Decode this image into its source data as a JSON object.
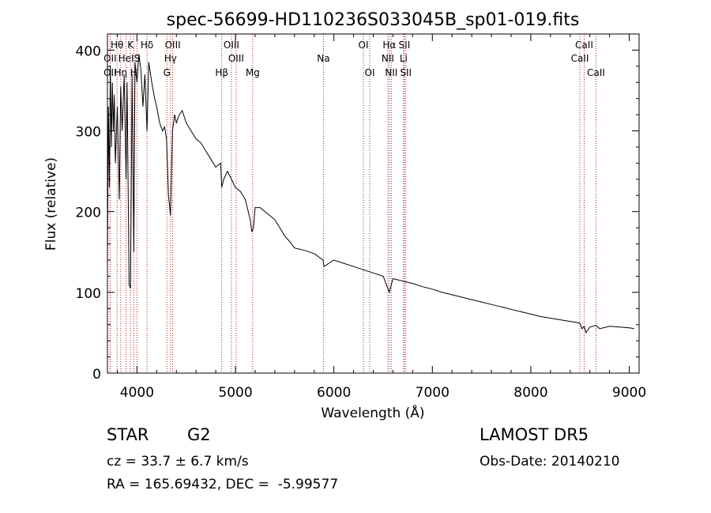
{
  "chart_data": {
    "type": "line",
    "title": "spec-56699-HD110236S033045B_sp01-019.fits",
    "xlabel": "Wavelength (Å)",
    "ylabel": "Flux (relative)",
    "xlim": [
      3700,
      9100
    ],
    "ylim": [
      0,
      420
    ],
    "x_ticks": [
      4000,
      5000,
      6000,
      7000,
      8000,
      9000
    ],
    "y_ticks": [
      0,
      100,
      200,
      300,
      400
    ],
    "grid": false,
    "line_color": "#000000",
    "marker_color": "#b22222",
    "series": [
      {
        "x": [
          3700,
          3710,
          3720,
          3730,
          3740,
          3750,
          3760,
          3770,
          3780,
          3800,
          3820,
          3835,
          3850,
          3870,
          3889,
          3900,
          3920,
          3934,
          3950,
          3968,
          3980,
          4000,
          4020,
          4040,
          4060,
          4080,
          4102,
          4120,
          4150,
          4180,
          4200,
          4230,
          4260,
          4280,
          4300,
          4320,
          4340,
          4360,
          4383,
          4400,
          4430,
          4460,
          4500,
          4550,
          4600,
          4650,
          4700,
          4750,
          4800,
          4850,
          4861,
          4880,
          4920,
          4960,
          5000,
          5050,
          5100,
          5150,
          5167,
          5183,
          5200,
          5250,
          5300,
          5350,
          5400,
          5450,
          5500,
          5550,
          5600,
          5700,
          5800,
          5890,
          5900,
          6000,
          6100,
          6200,
          6300,
          6400,
          6500,
          6563,
          6600,
          6700,
          6800,
          6900,
          7000,
          7100,
          7200,
          7300,
          7400,
          7500,
          7600,
          7700,
          7800,
          7900,
          8000,
          8100,
          8200,
          8300,
          8400,
          8498,
          8520,
          8542,
          8560,
          8600,
          8662,
          8700,
          8800,
          8900,
          9000,
          9050
        ],
        "y": [
          140,
          330,
          230,
          380,
          280,
          360,
          300,
          345,
          260,
          330,
          215,
          355,
          300,
          370,
          240,
          360,
          110,
          105,
          370,
          150,
          385,
          360,
          395,
          375,
          330,
          370,
          300,
          385,
          360,
          340,
          330,
          310,
          300,
          305,
          290,
          220,
          195,
          300,
          320,
          310,
          320,
          325,
          310,
          300,
          290,
          285,
          275,
          265,
          255,
          260,
          230,
          240,
          250,
          240,
          230,
          225,
          215,
          190,
          175,
          180,
          205,
          205,
          200,
          195,
          190,
          180,
          170,
          163,
          155,
          152,
          148,
          140,
          132,
          140,
          136,
          132,
          128,
          124,
          120,
          100,
          117,
          114,
          111,
          107,
          104,
          100,
          97,
          94,
          91,
          88,
          85,
          82,
          79,
          76,
          73,
          70,
          68,
          66,
          64,
          62,
          55,
          58,
          50,
          57,
          59,
          55,
          58,
          57,
          56,
          55
        ]
      }
    ],
    "lines": [
      {
        "label": "Hθ",
        "x": 3798,
        "row": 1
      },
      {
        "label": "OII",
        "x": 3727,
        "row": 2
      },
      {
        "label": "HeI",
        "x": 3889,
        "row": 2
      },
      {
        "label": "OII",
        "x": 3727,
        "row": 3
      },
      {
        "label": "Hη",
        "x": 3835,
        "row": 3
      },
      {
        "label": "K",
        "x": 3934,
        "row": 1
      },
      {
        "label": "H",
        "x": 3968,
        "row": 3
      },
      {
        "label": "S",
        "x": 4000,
        "row": 2
      },
      {
        "label": "Hδ",
        "x": 4102,
        "row": 1
      },
      {
        "label": "OIII",
        "x": 4363,
        "row": 1
      },
      {
        "label": "Hγ",
        "x": 4340,
        "row": 2
      },
      {
        "label": "G",
        "x": 4304,
        "row": 3
      },
      {
        "label": "Hβ",
        "x": 4861,
        "row": 3
      },
      {
        "label": "OIII",
        "x": 4959,
        "row": 1
      },
      {
        "label": "OIII",
        "x": 5007,
        "row": 2
      },
      {
        "label": "Mg",
        "x": 5175,
        "row": 3
      },
      {
        "label": "Na",
        "x": 5894,
        "row": 2
      },
      {
        "label": "OI",
        "x": 6300,
        "row": 1
      },
      {
        "label": "OI",
        "x": 6364,
        "row": 3
      },
      {
        "label": "Hα",
        "x": 6563,
        "row": 1
      },
      {
        "label": "NII",
        "x": 6548,
        "row": 2
      },
      {
        "label": "NII",
        "x": 6583,
        "row": 3
      },
      {
        "label": "SII",
        "x": 6716,
        "row": 1
      },
      {
        "label": "Li",
        "x": 6708,
        "row": 2
      },
      {
        "label": "SII",
        "x": 6731,
        "row": 3
      },
      {
        "label": "CaII",
        "x": 8542,
        "row": 1
      },
      {
        "label": "CaII",
        "x": 8498,
        "row": 2
      },
      {
        "label": "CaII",
        "x": 8662,
        "row": 3
      }
    ]
  },
  "info": {
    "object_class": "STAR",
    "subclass": "G2",
    "survey": "LAMOST DR5",
    "cz": "cz = 33.7 ± 6.7 km/s",
    "obs_date": "Obs-Date: 20140210",
    "radec": "RA = 165.69432, DEC =  -5.99577"
  }
}
